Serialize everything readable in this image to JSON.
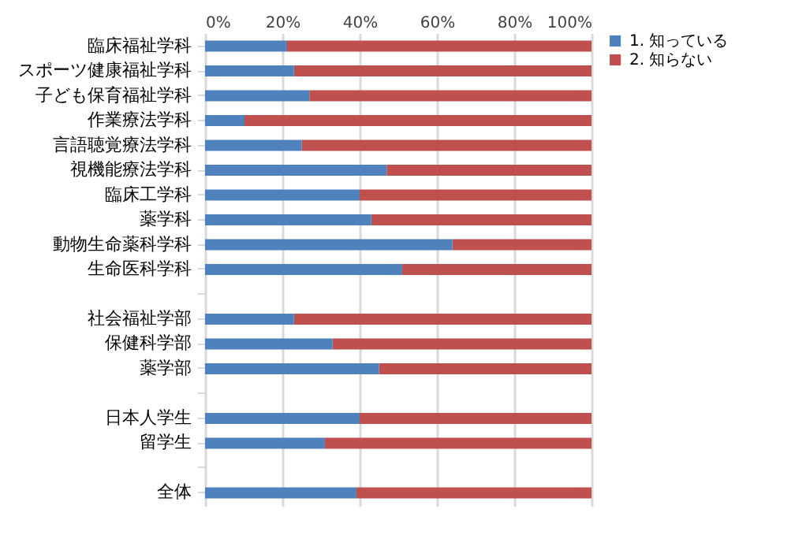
{
  "chart_data": {
    "type": "bar",
    "orientation": "horizontal",
    "stacked": true,
    "categories": [
      "臨床福祉学科",
      "スポーツ健康福祉学科",
      "子ども保育福祉学科",
      "作業療法学科",
      "言語聴覚療法学科",
      "視機能療法学科",
      "臨床工学科",
      "薬学科",
      "動物生命薬科学科",
      "生命医科学科",
      null,
      "社会福祉学部",
      "保健科学部",
      "薬学部",
      null,
      "日本人学生",
      "留学生",
      null,
      "全体"
    ],
    "series": [
      {
        "name": "1. 知っている",
        "color": "#4f81bd",
        "values": [
          21,
          23,
          27,
          10,
          25,
          47,
          40,
          43,
          64,
          51,
          null,
          23,
          33,
          45,
          null,
          40,
          31,
          null,
          39
        ]
      },
      {
        "name": "2. 知らない",
        "color": "#c0504d",
        "values": [
          79,
          77,
          73,
          90,
          75,
          53,
          60,
          57,
          36,
          49,
          null,
          77,
          67,
          55,
          null,
          60,
          69,
          null,
          61
        ]
      }
    ],
    "xlim": [
      0,
      100
    ],
    "xticks": [
      {
        "value": 0,
        "label": "0%"
      },
      {
        "value": 20,
        "label": "20%"
      },
      {
        "value": 40,
        "label": "40%"
      },
      {
        "value": 60,
        "label": "60%"
      },
      {
        "value": 80,
        "label": "80%"
      },
      {
        "value": 100,
        "label": "100%"
      }
    ],
    "grid": "x",
    "legend": "right"
  }
}
